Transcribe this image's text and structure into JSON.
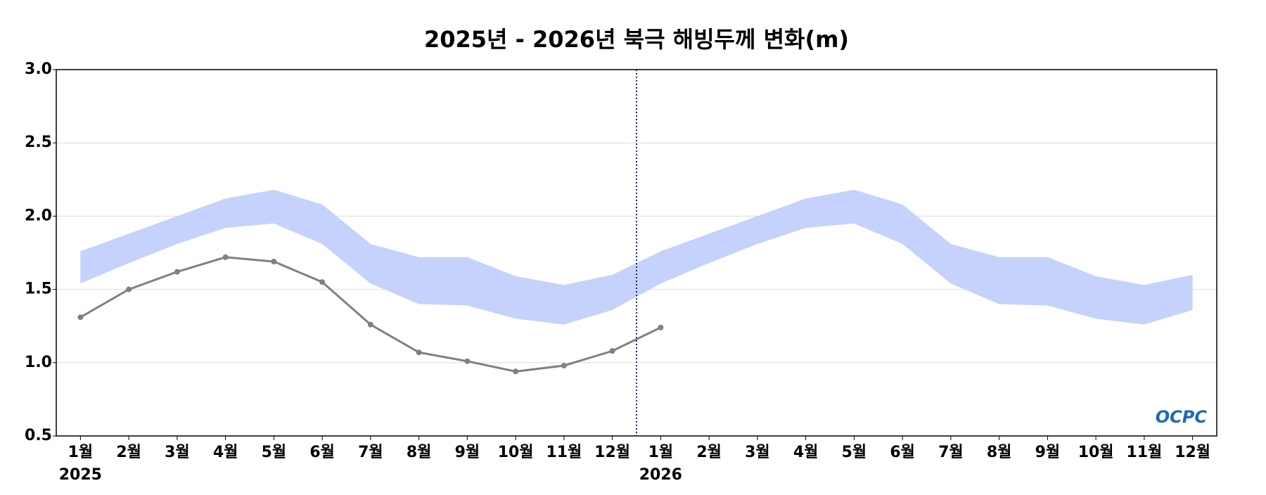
{
  "chart_data": {
    "type": "line",
    "title": "2025년 - 2026년 북극 해빙두께 변화(m)",
    "categories": [
      "1월",
      "2월",
      "3월",
      "4월",
      "5월",
      "6월",
      "7월",
      "8월",
      "9월",
      "10월",
      "11월",
      "12월",
      "1월",
      "2월",
      "3월",
      "4월",
      "5월",
      "6월",
      "7월",
      "8월",
      "9월",
      "10월",
      "11월",
      "12월"
    ],
    "years": [
      "2025",
      "2026"
    ],
    "band": {
      "color": "#c5d2fb",
      "upper": [
        1.76,
        1.88,
        2.0,
        2.12,
        2.18,
        2.08,
        1.81,
        1.72,
        1.72,
        1.59,
        1.53,
        1.6,
        1.76,
        1.88,
        2.0,
        2.12,
        2.18,
        2.08,
        1.81,
        1.72,
        1.72,
        1.59,
        1.53,
        1.6
      ],
      "lower": [
        1.54,
        1.68,
        1.81,
        1.92,
        1.95,
        1.81,
        1.54,
        1.4,
        1.39,
        1.3,
        1.26,
        1.36,
        1.54,
        1.68,
        1.81,
        1.92,
        1.95,
        1.81,
        1.54,
        1.4,
        1.39,
        1.3,
        1.26,
        1.36
      ]
    },
    "series": [
      {
        "color": "#808080",
        "values": [
          1.31,
          1.5,
          1.62,
          1.72,
          1.69,
          1.55,
          1.26,
          1.07,
          1.01,
          0.94,
          0.98,
          1.08,
          1.24,
          null,
          null,
          null,
          null,
          null,
          null,
          null,
          null,
          null,
          null,
          null
        ]
      }
    ],
    "ylim": [
      0.5,
      3.0
    ],
    "yticks": [
      0.5,
      {
        "value": 1.0,
        "label": "1.0"
      },
      1.5,
      {
        "value": 2.0,
        "label": "2.0"
      },
      2.5,
      {
        "value": 3.0,
        "label": "3.0"
      }
    ],
    "grid": true,
    "logo": "OCPC"
  }
}
